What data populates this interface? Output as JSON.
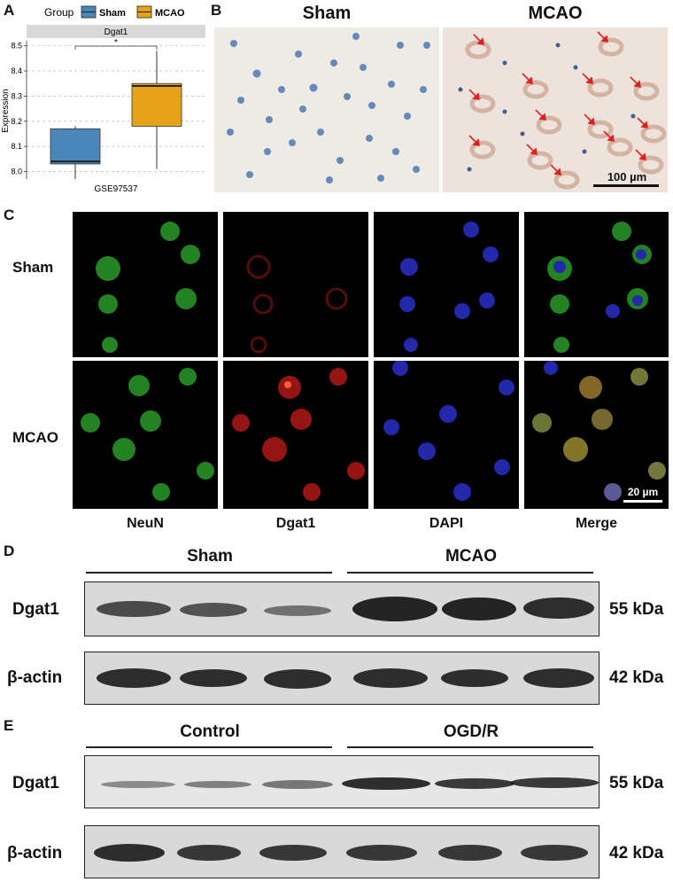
{
  "panelA": {
    "letter": "A",
    "legend_title": "Group",
    "strip": "Dgat1",
    "sig": "*",
    "colors": {
      "Sham": "#4a86b8",
      "MCAO": "#e6a21a"
    },
    "chart_data": {
      "type": "box",
      "title": "Dgat1",
      "xlabel": "GSE97537",
      "ylabel": "Expression",
      "ylim": [
        7.97,
        8.52
      ],
      "yticks": [
        "8.0",
        "8.1",
        "8.2",
        "8.3",
        "8.4",
        "8.5"
      ],
      "legend": "top",
      "series": [
        {
          "name": "Sham",
          "min": 7.97,
          "q1": 8.03,
          "median": 8.04,
          "q3": 8.17,
          "max": 8.18
        },
        {
          "name": "MCAO",
          "min": 8.01,
          "q1": 8.18,
          "median": 8.34,
          "q3": 8.35,
          "max": 8.48
        }
      ],
      "significance": "*"
    }
  },
  "panelB": {
    "letter": "B",
    "left_title": "Sham",
    "right_title": "MCAO",
    "scalebar": "100 µm"
  },
  "panelC": {
    "letter": "C",
    "rows": [
      "Sham",
      "MCAO"
    ],
    "cols": [
      "NeuN",
      "Dgat1",
      "DAPI",
      "Merge"
    ],
    "scalebar": "20 µm"
  },
  "panelD": {
    "letter": "D",
    "groups": [
      "Sham",
      "MCAO"
    ],
    "bands": [
      {
        "name": "Dgat1",
        "kda": "55 kDa"
      },
      {
        "name": "β-actin",
        "kda": "42 kDa"
      }
    ]
  },
  "panelE": {
    "letter": "E",
    "groups": [
      "Control",
      "OGD/R"
    ],
    "bands": [
      {
        "name": "Dgat1",
        "kda": "55 kDa"
      },
      {
        "name": "β-actin",
        "kda": "42 kDa"
      }
    ]
  }
}
